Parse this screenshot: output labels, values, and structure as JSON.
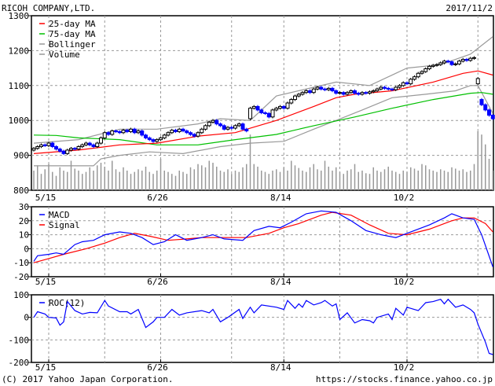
{
  "header": {
    "title": "RICOH COMPANY,LTD.",
    "date": "2017/11/2"
  },
  "footer": {
    "copyright": "(C) 2017 Yahoo Japan Corporation.",
    "url": "https://stocks.finance.yahoo.co.jp"
  },
  "colors": {
    "up": "#000000",
    "down": "#0000ff",
    "ma25": "#ff0000",
    "ma75": "#00c000",
    "bollinger": "#999999",
    "volume": "#999999",
    "macd": "#0000ff",
    "signal": "#ff0000",
    "roc": "#0000ff",
    "grid": "#999999"
  },
  "chart_data": [
    {
      "type": "candlestick",
      "title": "RICOH COMPANY,LTD.",
      "x_unit": "trading-day index",
      "ylim": [
        800,
        1300
      ],
      "yticks": [
        "1300",
        "1200",
        "1100",
        "1000",
        "900",
        "800"
      ],
      "ytick_values": [
        1300,
        1200,
        1100,
        1000,
        900,
        800
      ],
      "xtick_labels": [
        "5/15",
        "6/26",
        "8/14",
        "10/2"
      ],
      "xtick_index": [
        4,
        34,
        67,
        100
      ],
      "grid_index": [
        4,
        19,
        34,
        53,
        67,
        82,
        100,
        119
      ],
      "legend": [
        "25-day MA",
        "75-day MA",
        "Bollinger",
        "Volume"
      ],
      "legend_position": "top-left",
      "close": [
        920,
        925,
        930,
        928,
        935,
        925,
        918,
        912,
        905,
        915,
        920,
        918,
        925,
        930,
        935,
        930,
        925,
        935,
        950,
        965,
        960,
        970,
        968,
        965,
        972,
        968,
        975,
        965,
        970,
        958,
        950,
        945,
        940,
        945,
        950,
        958,
        965,
        972,
        968,
        975,
        970,
        965,
        960,
        955,
        965,
        975,
        985,
        995,
        1000,
        990,
        985,
        975,
        980,
        978,
        985,
        990,
        975,
        970,
        1035,
        1040,
        1030,
        1022,
        1020,
        1010,
        1030,
        1035,
        1040,
        1035,
        1050,
        1060,
        1070,
        1075,
        1080,
        1085,
        1080,
        1090,
        1095,
        1090,
        1088,
        1092,
        1085,
        1078,
        1080,
        1075,
        1080,
        1085,
        1078,
        1075,
        1080,
        1078,
        1082,
        1085,
        1090,
        1095,
        1092,
        1090,
        1088,
        1095,
        1100,
        1108,
        1105,
        1118,
        1125,
        1135,
        1140,
        1148,
        1155,
        1158,
        1160,
        1165,
        1170,
        1168,
        1160,
        1162,
        1170,
        1175,
        1172,
        1178,
        1180,
        1120,
        1045,
        1030,
        1015,
        1005
      ],
      "open": [
        915,
        920,
        925,
        930,
        928,
        935,
        925,
        918,
        912,
        905,
        915,
        920,
        918,
        925,
        930,
        935,
        930,
        925,
        935,
        950,
        965,
        960,
        970,
        968,
        965,
        972,
        968,
        975,
        965,
        970,
        958,
        950,
        945,
        940,
        945,
        950,
        958,
        965,
        972,
        968,
        975,
        970,
        965,
        960,
        955,
        965,
        975,
        985,
        995,
        1000,
        990,
        985,
        975,
        980,
        978,
        985,
        990,
        975,
        1005,
        1035,
        1040,
        1030,
        1022,
        1020,
        1010,
        1030,
        1035,
        1040,
        1035,
        1050,
        1060,
        1070,
        1075,
        1080,
        1085,
        1080,
        1090,
        1095,
        1090,
        1088,
        1092,
        1085,
        1078,
        1080,
        1075,
        1080,
        1085,
        1078,
        1075,
        1080,
        1078,
        1082,
        1085,
        1090,
        1095,
        1092,
        1090,
        1088,
        1095,
        1100,
        1108,
        1105,
        1118,
        1125,
        1135,
        1140,
        1148,
        1155,
        1158,
        1160,
        1165,
        1170,
        1168,
        1160,
        1162,
        1170,
        1175,
        1172,
        1178,
        1105,
        1060,
        1045,
        1030,
        1015
      ],
      "volume": [
        30,
        38,
        25,
        32,
        40,
        28,
        22,
        35,
        30,
        28,
        45,
        33,
        30,
        25,
        28,
        35,
        30,
        38,
        42,
        36,
        30,
        45,
        32,
        28,
        35,
        30,
        25,
        28,
        32,
        30,
        36,
        28,
        25,
        30,
        48,
        30,
        28,
        25,
        22,
        30,
        28,
        25,
        35,
        32,
        40,
        38,
        35,
        45,
        42,
        36,
        30,
        28,
        32,
        25,
        30,
        28,
        35,
        40,
        85,
        40,
        36,
        30,
        28,
        25,
        30,
        32,
        28,
        35,
        30,
        45,
        38,
        34,
        30,
        28,
        35,
        40,
        32,
        30,
        45,
        36,
        30,
        35,
        28,
        25,
        30,
        32,
        40,
        28,
        30,
        26,
        25,
        35,
        30,
        28,
        32,
        36,
        30,
        28,
        25,
        30,
        28,
        35,
        33,
        30,
        40,
        38,
        32,
        30,
        28,
        32,
        30,
        28,
        35,
        33,
        30,
        32,
        28,
        30,
        40,
        90,
        85,
        70,
        48,
        30
      ],
      "ma25": [
        [
          0,
          905
        ],
        [
          12,
          915
        ],
        [
          23,
          930
        ],
        [
          33,
          935
        ],
        [
          44,
          955
        ],
        [
          54,
          965
        ],
        [
          65,
          1000
        ],
        [
          75,
          1040
        ],
        [
          81,
          1065
        ],
        [
          86,
          1075
        ],
        [
          96,
          1085
        ],
        [
          107,
          1110
        ],
        [
          115,
          1135
        ],
        [
          119,
          1142
        ],
        [
          123,
          1130
        ]
      ],
      "ma75": [
        [
          0,
          958
        ],
        [
          6,
          957
        ],
        [
          12,
          950
        ],
        [
          23,
          945
        ],
        [
          33,
          930
        ],
        [
          44,
          930
        ],
        [
          54,
          945
        ],
        [
          65,
          960
        ],
        [
          75,
          985
        ],
        [
          86,
          1010
        ],
        [
          96,
          1035
        ],
        [
          107,
          1060
        ],
        [
          117,
          1078
        ],
        [
          120,
          1080
        ],
        [
          123,
          1075
        ]
      ],
      "bollinger_upper": [
        [
          0,
          935
        ],
        [
          12,
          945
        ],
        [
          23,
          975
        ],
        [
          33,
          975
        ],
        [
          44,
          990
        ],
        [
          50,
          1005
        ],
        [
          58,
          1000
        ],
        [
          65,
          1070
        ],
        [
          75,
          1095
        ],
        [
          81,
          1110
        ],
        [
          90,
          1100
        ],
        [
          100,
          1150
        ],
        [
          109,
          1160
        ],
        [
          117,
          1190
        ],
        [
          123,
          1240
        ]
      ],
      "bollinger_lower": [
        [
          0,
          870
        ],
        [
          8,
          870
        ],
        [
          16,
          870
        ],
        [
          18,
          890
        ],
        [
          23,
          900
        ],
        [
          31,
          910
        ],
        [
          40,
          905
        ],
        [
          50,
          925
        ],
        [
          58,
          935
        ],
        [
          67,
          940
        ],
        [
          75,
          975
        ],
        [
          81,
          1000
        ],
        [
          88,
          1030
        ],
        [
          96,
          1065
        ],
        [
          105,
          1075
        ],
        [
          113,
          1085
        ],
        [
          117,
          1100
        ],
        [
          119,
          1100
        ],
        [
          123,
          1020
        ]
      ]
    },
    {
      "type": "line",
      "title": "MACD",
      "ylim": [
        -20,
        30
      ],
      "yticks": [
        "30",
        "20",
        "10",
        "0",
        "-10",
        "-20"
      ],
      "ytick_values": [
        30,
        20,
        10,
        0,
        -10,
        -20
      ],
      "xtick_labels": [
        "5/15",
        "6/26",
        "8/14",
        "10/2"
      ],
      "legend": [
        "MACD",
        "Signal"
      ],
      "series": [
        {
          "name": "MACD",
          "points": [
            [
              0,
              -9
            ],
            [
              1,
              -5
            ],
            [
              4,
              -4
            ],
            [
              6,
              -3
            ],
            [
              8,
              -4
            ],
            [
              11,
              3
            ],
            [
              13,
              5
            ],
            [
              16,
              6
            ],
            [
              19,
              10
            ],
            [
              23,
              12
            ],
            [
              26,
              11
            ],
            [
              29,
              8
            ],
            [
              32,
              3
            ],
            [
              35,
              5
            ],
            [
              38,
              10
            ],
            [
              41,
              6
            ],
            [
              45,
              8
            ],
            [
              48,
              10
            ],
            [
              51,
              7
            ],
            [
              56,
              6
            ],
            [
              59,
              13
            ],
            [
              63,
              16
            ],
            [
              66,
              15
            ],
            [
              69,
              19
            ],
            [
              73,
              25
            ],
            [
              77,
              27
            ],
            [
              81,
              26
            ],
            [
              85,
              20
            ],
            [
              89,
              13
            ],
            [
              93,
              10
            ],
            [
              97,
              8
            ],
            [
              100,
              11
            ],
            [
              106,
              17
            ],
            [
              110,
              22
            ],
            [
              112,
              25
            ],
            [
              115,
              22
            ],
            [
              118,
              21
            ],
            [
              120,
              10
            ],
            [
              123,
              -13
            ]
          ]
        },
        {
          "name": "Signal",
          "points": [
            [
              0,
              -10
            ],
            [
              4,
              -7
            ],
            [
              8,
              -4
            ],
            [
              14,
              0
            ],
            [
              19,
              4
            ],
            [
              23,
              8
            ],
            [
              27,
              11
            ],
            [
              31,
              9
            ],
            [
              36,
              6
            ],
            [
              41,
              7
            ],
            [
              45,
              8
            ],
            [
              52,
              8
            ],
            [
              57,
              8
            ],
            [
              63,
              11
            ],
            [
              67,
              15
            ],
            [
              71,
              18
            ],
            [
              77,
              24
            ],
            [
              80,
              26
            ],
            [
              85,
              24
            ],
            [
              90,
              17
            ],
            [
              95,
              11
            ],
            [
              100,
              10
            ],
            [
              106,
              14
            ],
            [
              112,
              20
            ],
            [
              115,
              22
            ],
            [
              118,
              22
            ],
            [
              121,
              18
            ],
            [
              123,
              12
            ]
          ]
        }
      ]
    },
    {
      "type": "line",
      "title": "ROC(12)",
      "ylim": [
        -200,
        100
      ],
      "yticks": [
        "100",
        "0",
        "-100",
        "-200"
      ],
      "ytick_values": [
        100,
        0,
        -100,
        -200
      ],
      "xtick_labels": [
        "5/15",
        "6/26",
        "8/14",
        "10/2"
      ],
      "legend": [
        "ROC(12)"
      ],
      "series": [
        {
          "name": "ROC(12)",
          "points": [
            [
              0,
              0
            ],
            [
              1,
              25
            ],
            [
              3,
              15
            ],
            [
              4,
              0
            ],
            [
              6,
              -3
            ],
            [
              7,
              -35
            ],
            [
              8,
              -20
            ],
            [
              9,
              70
            ],
            [
              11,
              30
            ],
            [
              13,
              15
            ],
            [
              15,
              22
            ],
            [
              17,
              20
            ],
            [
              19,
              75
            ],
            [
              20,
              50
            ],
            [
              23,
              25
            ],
            [
              25,
              25
            ],
            [
              26,
              15
            ],
            [
              28,
              35
            ],
            [
              30,
              -45
            ],
            [
              32,
              -20
            ],
            [
              33,
              0
            ],
            [
              35,
              0
            ],
            [
              37,
              35
            ],
            [
              39,
              10
            ],
            [
              41,
              20
            ],
            [
              45,
              30
            ],
            [
              47,
              20
            ],
            [
              48,
              35
            ],
            [
              50,
              -20
            ],
            [
              52,
              0
            ],
            [
              55,
              35
            ],
            [
              56,
              -5
            ],
            [
              58,
              45
            ],
            [
              59,
              20
            ],
            [
              61,
              55
            ],
            [
              65,
              45
            ],
            [
              67,
              35
            ],
            [
              68,
              75
            ],
            [
              70,
              40
            ],
            [
              71,
              60
            ],
            [
              72,
              45
            ],
            [
              73,
              75
            ],
            [
              75,
              55
            ],
            [
              77,
              65
            ],
            [
              78,
              75
            ],
            [
              80,
              50
            ],
            [
              81,
              60
            ],
            [
              82,
              -10
            ],
            [
              84,
              20
            ],
            [
              86,
              -25
            ],
            [
              88,
              -10
            ],
            [
              90,
              -15
            ],
            [
              91,
              -25
            ],
            [
              92,
              0
            ],
            [
              95,
              15
            ],
            [
              96,
              -10
            ],
            [
              97,
              40
            ],
            [
              99,
              10
            ],
            [
              100,
              45
            ],
            [
              103,
              30
            ],
            [
              105,
              65
            ],
            [
              107,
              70
            ],
            [
              109,
              80
            ],
            [
              110,
              60
            ],
            [
              111,
              80
            ],
            [
              113,
              45
            ],
            [
              115,
              55
            ],
            [
              117,
              35
            ],
            [
              118,
              20
            ],
            [
              119,
              -30
            ],
            [
              121,
              -110
            ],
            [
              122,
              -160
            ],
            [
              123,
              -165
            ]
          ]
        }
      ]
    }
  ]
}
